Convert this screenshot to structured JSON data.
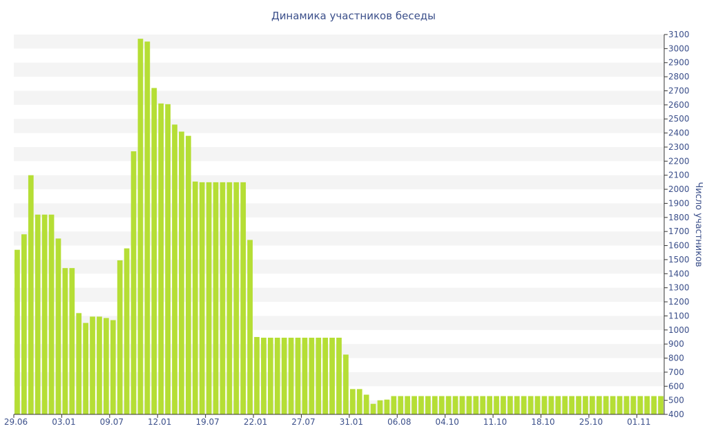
{
  "chart_data": {
    "type": "bar",
    "title": "Динамика участников беседы",
    "ylabel": "Число участников",
    "xlabel": "",
    "ylim": [
      400,
      3100
    ],
    "y_ticks": [
      400,
      500,
      600,
      700,
      800,
      900,
      1000,
      1100,
      1200,
      1300,
      1400,
      1500,
      1600,
      1700,
      1800,
      1900,
      2000,
      2100,
      2200,
      2300,
      2400,
      2500,
      2600,
      2700,
      2800,
      2900,
      3000,
      3100
    ],
    "x_tick_labels": [
      {
        "index": 0,
        "label": "29.06"
      },
      {
        "index": 7,
        "label": "03.01"
      },
      {
        "index": 14,
        "label": "09.07"
      },
      {
        "index": 21,
        "label": "12.01"
      },
      {
        "index": 28,
        "label": "19.07"
      },
      {
        "index": 35,
        "label": "22.01"
      },
      {
        "index": 42,
        "label": "27.07"
      },
      {
        "index": 49,
        "label": "31.01"
      },
      {
        "index": 56,
        "label": "06.08"
      },
      {
        "index": 63,
        "label": "04.10"
      },
      {
        "index": 70,
        "label": "11.10"
      },
      {
        "index": 77,
        "label": "18.10"
      },
      {
        "index": 84,
        "label": "25.10"
      },
      {
        "index": 91,
        "label": "01.11"
      }
    ],
    "values": [
      1570,
      1680,
      2100,
      1820,
      1820,
      1820,
      1650,
      1440,
      1440,
      1120,
      1050,
      1095,
      1095,
      1085,
      1070,
      1495,
      1580,
      2270,
      3070,
      3050,
      2720,
      2610,
      2605,
      2460,
      2410,
      2380,
      2055,
      2050,
      2050,
      2050,
      2050,
      2050,
      2050,
      2050,
      1640,
      950,
      945,
      945,
      945,
      945,
      945,
      945,
      945,
      945,
      945,
      945,
      945,
      945,
      825,
      580,
      580,
      540,
      475,
      500,
      505,
      530,
      530,
      530,
      530,
      530,
      530,
      530,
      530,
      530,
      530,
      530,
      530,
      530,
      530,
      530,
      530,
      530,
      530,
      530,
      530,
      530,
      530,
      530,
      530,
      530,
      530,
      530,
      530,
      530,
      530,
      530,
      530,
      530,
      530,
      530,
      530,
      530,
      530,
      530,
      530
    ],
    "grid": "horizontal alternating bands",
    "y_axis_position": "right",
    "colors": {
      "bar": "#b5de35",
      "text": "#3b4f8a",
      "band": "#f4f4f4",
      "axis": "#333333"
    }
  }
}
